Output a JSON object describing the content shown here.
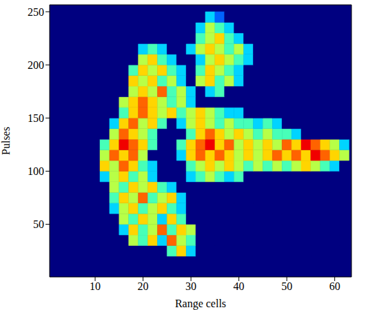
{
  "chart_data": {
    "type": "heatmap",
    "xlabel": "Range cells",
    "ylabel": "Pulses",
    "xlim": [
      0.5,
      63.5
    ],
    "ylim": [
      0.5,
      256.5
    ],
    "xticks": [
      10,
      20,
      30,
      40,
      50,
      60
    ],
    "yticks": [
      50,
      100,
      150,
      200,
      250
    ],
    "zlim": [
      0,
      9
    ],
    "x_edges": [
      11,
      13,
      15,
      17,
      19,
      21,
      23,
      25,
      27,
      29,
      31,
      33,
      35,
      37,
      39,
      41,
      43,
      45,
      47,
      49,
      51,
      53,
      55,
      57,
      59,
      61,
      63
    ],
    "y_edges": [
      20,
      30,
      40,
      50,
      60,
      70,
      80,
      90,
      100,
      110,
      120,
      130,
      140,
      150,
      160,
      170,
      180,
      190,
      200,
      210,
      220,
      230,
      240,
      250
    ],
    "cells": [
      [
        0,
        0,
        0,
        0,
        0,
        0,
        0,
        4,
        6,
        3,
        0,
        0,
        0,
        0,
        0,
        0,
        0,
        0,
        0,
        0,
        0,
        0,
        0,
        0,
        0,
        0
      ],
      [
        0,
        0,
        0,
        5,
        4,
        6,
        3,
        7,
        5,
        4,
        0,
        0,
        0,
        0,
        0,
        0,
        0,
        0,
        0,
        0,
        0,
        0,
        0,
        0,
        0,
        0
      ],
      [
        0,
        0,
        3,
        6,
        4,
        5,
        7,
        4,
        6,
        5,
        0,
        0,
        0,
        0,
        0,
        0,
        0,
        0,
        0,
        0,
        0,
        0,
        0,
        0,
        0,
        0
      ],
      [
        0,
        0,
        5,
        4,
        6,
        5,
        3,
        6,
        4,
        0,
        0,
        0,
        0,
        0,
        0,
        0,
        0,
        0,
        0,
        0,
        0,
        0,
        0,
        0,
        0,
        0
      ],
      [
        0,
        3,
        5,
        6,
        4,
        5,
        6,
        4,
        3,
        0,
        0,
        0,
        0,
        0,
        0,
        0,
        0,
        0,
        0,
        0,
        0,
        0,
        0,
        0,
        0,
        0
      ],
      [
        0,
        4,
        6,
        5,
        7,
        4,
        5,
        6,
        3,
        0,
        0,
        0,
        0,
        0,
        0,
        0,
        0,
        0,
        0,
        0,
        0,
        0,
        0,
        0,
        0,
        0
      ],
      [
        0,
        5,
        4,
        6,
        5,
        6,
        4,
        3,
        0,
        0,
        0,
        0,
        0,
        0,
        0,
        0,
        0,
        0,
        0,
        0,
        0,
        0,
        0,
        0,
        0,
        0
      ],
      [
        3,
        5,
        6,
        4,
        5,
        3,
        0,
        0,
        0,
        3,
        4,
        5,
        4,
        3,
        4,
        0,
        0,
        0,
        0,
        0,
        0,
        0,
        0,
        0,
        0,
        0
      ],
      [
        6,
        5,
        7,
        6,
        4,
        3,
        0,
        0,
        0,
        4,
        5,
        6,
        5,
        6,
        5,
        4,
        5,
        4,
        5,
        4,
        5,
        6,
        5,
        4,
        3,
        0
      ],
      [
        5,
        7,
        6,
        7,
        5,
        0,
        0,
        0,
        3,
        6,
        7,
        6,
        7,
        6,
        5,
        6,
        5,
        6,
        7,
        6,
        7,
        6,
        8,
        7,
        6,
        5
      ],
      [
        4,
        6,
        8,
        7,
        6,
        4,
        0,
        0,
        4,
        6,
        7,
        8,
        6,
        7,
        5,
        6,
        5,
        6,
        5,
        7,
        6,
        8,
        7,
        6,
        5,
        3
      ],
      [
        0,
        5,
        7,
        6,
        5,
        4,
        0,
        0,
        0,
        4,
        6,
        7,
        6,
        5,
        6,
        5,
        4,
        5,
        4,
        4,
        3,
        0,
        0,
        0,
        0,
        0
      ],
      [
        0,
        3,
        6,
        7,
        5,
        6,
        4,
        0,
        3,
        5,
        6,
        5,
        4,
        5,
        4,
        4,
        3,
        4,
        3,
        0,
        0,
        0,
        0,
        0,
        0,
        0
      ],
      [
        0,
        0,
        4,
        6,
        7,
        6,
        5,
        6,
        4,
        5,
        6,
        5,
        4,
        3,
        3,
        0,
        0,
        0,
        0,
        0,
        0,
        0,
        0,
        0,
        0,
        0
      ],
      [
        0,
        0,
        5,
        6,
        7,
        6,
        5,
        4,
        5,
        3,
        0,
        0,
        0,
        0,
        0,
        0,
        0,
        0,
        0,
        0,
        0,
        0,
        0,
        0,
        0,
        0
      ],
      [
        0,
        0,
        0,
        5,
        6,
        5,
        7,
        4,
        5,
        3,
        0,
        3,
        4,
        0,
        0,
        0,
        0,
        0,
        0,
        0,
        0,
        0,
        0,
        0,
        0,
        0
      ],
      [
        0,
        0,
        0,
        6,
        5,
        6,
        4,
        5,
        3,
        0,
        5,
        6,
        4,
        5,
        3,
        0,
        0,
        0,
        0,
        0,
        0,
        0,
        0,
        0,
        0,
        0
      ],
      [
        0,
        0,
        0,
        4,
        6,
        5,
        6,
        4,
        3,
        0,
        4,
        6,
        5,
        4,
        3,
        0,
        0,
        0,
        0,
        0,
        0,
        0,
        0,
        0,
        0,
        0
      ],
      [
        0,
        0,
        0,
        0,
        5,
        6,
        4,
        3,
        0,
        0,
        3,
        5,
        6,
        5,
        4,
        3,
        0,
        0,
        0,
        0,
        0,
        0,
        0,
        0,
        0,
        0
      ],
      [
        0,
        0,
        0,
        0,
        3,
        4,
        3,
        0,
        0,
        3,
        5,
        6,
        5,
        4,
        5,
        3,
        0,
        0,
        0,
        0,
        0,
        0,
        0,
        0,
        0,
        0
      ],
      [
        0,
        0,
        0,
        0,
        0,
        0,
        0,
        0,
        0,
        0,
        4,
        5,
        6,
        4,
        3,
        0,
        0,
        0,
        0,
        0,
        0,
        0,
        0,
        0,
        0,
        0
      ],
      [
        0,
        0,
        0,
        0,
        0,
        0,
        0,
        0,
        0,
        0,
        3,
        5,
        4,
        3,
        0,
        0,
        0,
        0,
        0,
        0,
        0,
        0,
        0,
        0,
        0,
        0
      ],
      [
        0,
        0,
        0,
        0,
        0,
        0,
        0,
        0,
        0,
        0,
        0,
        3,
        2,
        0,
        0,
        0,
        0,
        0,
        0,
        0,
        0,
        0,
        0,
        0,
        0,
        0
      ]
    ]
  }
}
